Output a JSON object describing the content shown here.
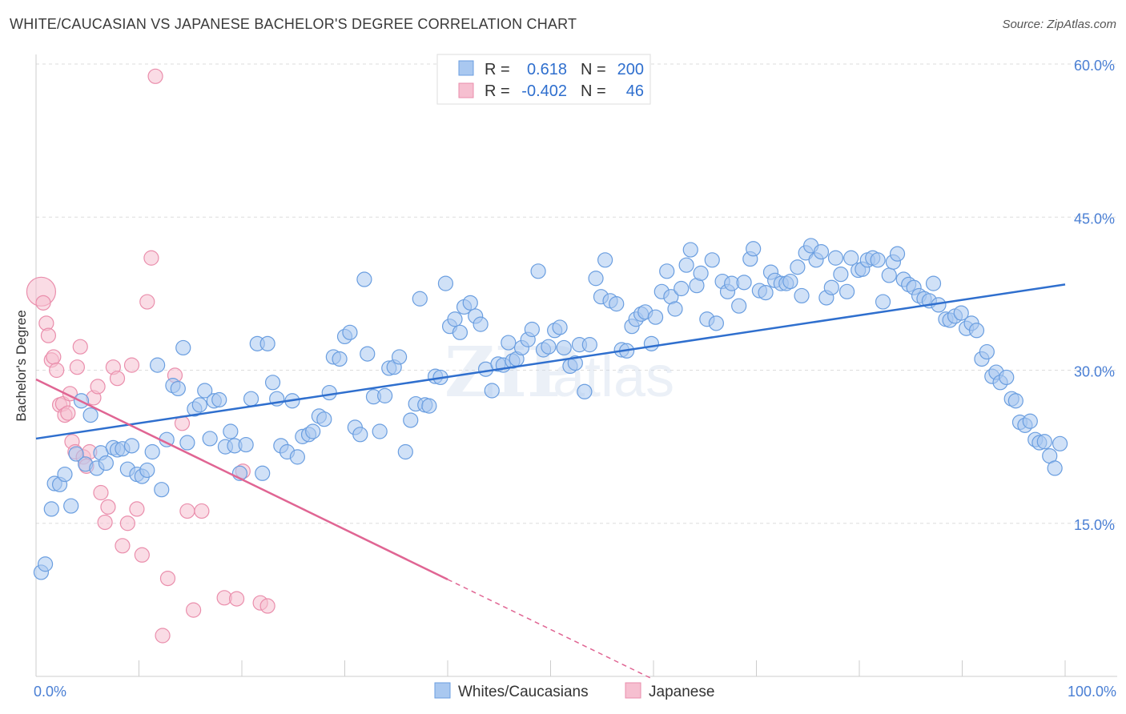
{
  "title": "WHITE/CAUCASIAN VS JAPANESE BACHELOR'S DEGREE CORRELATION CHART",
  "source": "Source: ZipAtlas.com",
  "watermark": {
    "zip": "ZIP",
    "atlas": "atlas"
  },
  "colors": {
    "blue_fill": "#a9c8f0",
    "blue_stroke": "#6a9ee0",
    "blue_line": "#2f6fce",
    "pink_fill": "#f6bfd0",
    "pink_stroke": "#ea8eac",
    "pink_line": "#e06593",
    "tick": "#4a7fd4",
    "grid": "#dddddd"
  },
  "legend": {
    "rows": [
      {
        "r_label": "R =",
        "r_value": "0.618",
        "n_label": "N =",
        "n_value": "200"
      },
      {
        "r_label": "R =",
        "r_value": "-0.402",
        "n_label": "N =",
        "n_value": "46"
      }
    ]
  },
  "bottom_legend": {
    "series1": "Whites/Caucasians",
    "series2": "Japanese"
  },
  "chart_data": {
    "type": "scatter",
    "ylabel": "Bachelor's Degree",
    "xlim": [
      0,
      100
    ],
    "ylim": [
      0,
      60
    ],
    "x_tick_labels": {
      "left": "0.0%",
      "right": "100.0%"
    },
    "y_ticks": [
      {
        "value": 15,
        "label": "15.0%"
      },
      {
        "value": 30,
        "label": "30.0%"
      },
      {
        "value": 45,
        "label": "45.0%"
      },
      {
        "value": 60,
        "label": "60.0%"
      }
    ],
    "series": [
      {
        "name": "Whites/Caucasians",
        "trend": {
          "x": [
            0,
            100
          ],
          "y": [
            23.3,
            38.4
          ],
          "dashed_from": null
        },
        "points": [
          [
            0.5,
            10.2
          ],
          [
            0.9,
            11.0
          ],
          [
            1.5,
            16.4
          ],
          [
            1.8,
            18.9
          ],
          [
            2.3,
            18.8
          ],
          [
            2.8,
            19.8
          ],
          [
            3.4,
            16.7
          ],
          [
            3.9,
            21.8
          ],
          [
            4.4,
            27.0
          ],
          [
            4.8,
            20.8
          ],
          [
            5.3,
            25.6
          ],
          [
            5.9,
            20.4
          ],
          [
            6.3,
            21.9
          ],
          [
            6.8,
            20.9
          ],
          [
            7.5,
            22.4
          ],
          [
            7.9,
            22.2
          ],
          [
            8.4,
            22.3
          ],
          [
            8.9,
            20.3
          ],
          [
            9.3,
            22.6
          ],
          [
            9.8,
            19.8
          ],
          [
            10.3,
            19.6
          ],
          [
            10.8,
            20.2
          ],
          [
            11.3,
            22.0
          ],
          [
            11.8,
            30.5
          ],
          [
            12.2,
            18.3
          ],
          [
            12.7,
            23.2
          ],
          [
            13.3,
            28.5
          ],
          [
            13.8,
            28.2
          ],
          [
            14.3,
            32.2
          ],
          [
            14.7,
            22.9
          ],
          [
            15.4,
            26.2
          ],
          [
            15.9,
            26.6
          ],
          [
            16.4,
            28.0
          ],
          [
            16.9,
            23.3
          ],
          [
            17.3,
            27.0
          ],
          [
            17.8,
            27.1
          ],
          [
            18.4,
            22.5
          ],
          [
            18.9,
            24.0
          ],
          [
            19.3,
            22.6
          ],
          [
            19.8,
            19.9
          ],
          [
            20.4,
            22.7
          ],
          [
            20.9,
            27.2
          ],
          [
            21.5,
            32.6
          ],
          [
            22.0,
            19.9
          ],
          [
            22.5,
            32.6
          ],
          [
            23.0,
            28.8
          ],
          [
            23.4,
            27.2
          ],
          [
            23.8,
            22.6
          ],
          [
            24.4,
            22.0
          ],
          [
            24.9,
            27.0
          ],
          [
            25.4,
            21.5
          ],
          [
            25.9,
            23.5
          ],
          [
            26.5,
            23.7
          ],
          [
            26.9,
            24.0
          ],
          [
            27.5,
            25.5
          ],
          [
            28.0,
            25.2
          ],
          [
            28.5,
            27.8
          ],
          [
            28.9,
            31.3
          ],
          [
            29.5,
            31.1
          ],
          [
            30.0,
            33.3
          ],
          [
            30.5,
            33.7
          ],
          [
            31.0,
            24.4
          ],
          [
            31.5,
            23.7
          ],
          [
            31.9,
            38.9
          ],
          [
            32.2,
            31.6
          ],
          [
            32.8,
            27.4
          ],
          [
            33.4,
            24.0
          ],
          [
            33.9,
            27.5
          ],
          [
            34.3,
            30.2
          ],
          [
            34.8,
            30.3
          ],
          [
            35.3,
            31.3
          ],
          [
            35.9,
            22.0
          ],
          [
            36.4,
            25.1
          ],
          [
            36.9,
            26.7
          ],
          [
            37.3,
            37.0
          ],
          [
            37.8,
            26.6
          ],
          [
            38.2,
            26.5
          ],
          [
            38.8,
            29.4
          ],
          [
            39.3,
            29.3
          ],
          [
            39.8,
            38.5
          ],
          [
            40.2,
            34.3
          ],
          [
            40.7,
            35.0
          ],
          [
            41.2,
            33.7
          ],
          [
            41.6,
            36.2
          ],
          [
            42.2,
            36.6
          ],
          [
            42.7,
            35.3
          ],
          [
            43.2,
            34.5
          ],
          [
            43.7,
            30.1
          ],
          [
            44.3,
            28.0
          ],
          [
            44.9,
            30.6
          ],
          [
            45.4,
            30.5
          ],
          [
            45.9,
            32.7
          ],
          [
            46.3,
            30.9
          ],
          [
            46.7,
            31.1
          ],
          [
            47.2,
            32.2
          ],
          [
            47.8,
            33.0
          ],
          [
            48.2,
            34.0
          ],
          [
            48.8,
            39.7
          ],
          [
            49.3,
            32.0
          ],
          [
            49.8,
            32.3
          ],
          [
            50.4,
            33.9
          ],
          [
            50.9,
            34.2
          ],
          [
            51.3,
            32.2
          ],
          [
            51.9,
            30.4
          ],
          [
            52.4,
            30.7
          ],
          [
            52.8,
            32.5
          ],
          [
            53.3,
            27.9
          ],
          [
            53.8,
            32.5
          ],
          [
            54.4,
            39.0
          ],
          [
            54.9,
            37.2
          ],
          [
            55.3,
            40.8
          ],
          [
            55.8,
            36.8
          ],
          [
            56.4,
            36.5
          ],
          [
            56.9,
            32.0
          ],
          [
            57.4,
            31.9
          ],
          [
            57.9,
            34.3
          ],
          [
            58.3,
            35.0
          ],
          [
            58.8,
            35.5
          ],
          [
            59.2,
            35.7
          ],
          [
            59.8,
            32.6
          ],
          [
            60.2,
            35.2
          ],
          [
            60.8,
            37.7
          ],
          [
            61.3,
            39.7
          ],
          [
            61.7,
            37.2
          ],
          [
            62.1,
            36.0
          ],
          [
            62.7,
            38.0
          ],
          [
            63.2,
            40.3
          ],
          [
            63.6,
            41.8
          ],
          [
            64.2,
            38.3
          ],
          [
            64.6,
            39.5
          ],
          [
            65.2,
            35.0
          ],
          [
            65.7,
            40.8
          ],
          [
            66.1,
            34.6
          ],
          [
            66.7,
            38.7
          ],
          [
            67.2,
            37.7
          ],
          [
            67.6,
            38.5
          ],
          [
            68.3,
            36.3
          ],
          [
            68.8,
            38.6
          ],
          [
            69.4,
            40.9
          ],
          [
            69.7,
            41.9
          ],
          [
            70.3,
            37.8
          ],
          [
            70.9,
            37.6
          ],
          [
            71.4,
            39.6
          ],
          [
            71.8,
            38.8
          ],
          [
            72.4,
            38.5
          ],
          [
            72.9,
            38.5
          ],
          [
            73.3,
            38.7
          ],
          [
            74.0,
            40.1
          ],
          [
            74.4,
            37.3
          ],
          [
            74.8,
            41.5
          ],
          [
            75.3,
            42.2
          ],
          [
            75.8,
            40.8
          ],
          [
            76.3,
            41.6
          ],
          [
            76.8,
            37.1
          ],
          [
            77.3,
            38.1
          ],
          [
            77.7,
            41.0
          ],
          [
            78.2,
            39.4
          ],
          [
            78.8,
            37.7
          ],
          [
            79.2,
            41.0
          ],
          [
            79.9,
            39.8
          ],
          [
            80.3,
            39.9
          ],
          [
            80.8,
            40.8
          ],
          [
            81.3,
            41.0
          ],
          [
            81.8,
            40.8
          ],
          [
            82.3,
            36.7
          ],
          [
            82.9,
            39.3
          ],
          [
            83.3,
            40.6
          ],
          [
            83.7,
            41.4
          ],
          [
            84.3,
            38.9
          ],
          [
            84.8,
            38.4
          ],
          [
            85.3,
            38.1
          ],
          [
            85.8,
            37.3
          ],
          [
            86.3,
            37.0
          ],
          [
            86.8,
            36.8
          ],
          [
            87.2,
            38.5
          ],
          [
            87.7,
            36.4
          ],
          [
            88.4,
            35.0
          ],
          [
            88.8,
            34.9
          ],
          [
            89.3,
            35.3
          ],
          [
            89.9,
            35.6
          ],
          [
            90.4,
            34.1
          ],
          [
            90.9,
            34.6
          ],
          [
            91.4,
            33.9
          ],
          [
            91.9,
            31.1
          ],
          [
            92.4,
            31.8
          ],
          [
            92.9,
            29.4
          ],
          [
            93.3,
            29.8
          ],
          [
            93.7,
            28.8
          ],
          [
            94.3,
            29.3
          ],
          [
            94.8,
            27.2
          ],
          [
            95.2,
            27.0
          ],
          [
            95.6,
            24.9
          ],
          [
            96.1,
            24.6
          ],
          [
            96.6,
            25.0
          ],
          [
            97.1,
            23.2
          ],
          [
            97.5,
            22.9
          ],
          [
            98.0,
            23.0
          ],
          [
            98.5,
            21.6
          ],
          [
            99.0,
            20.4
          ],
          [
            99.5,
            22.8
          ]
        ]
      },
      {
        "name": "Japanese",
        "trend": {
          "x": [
            0,
            40.0,
            60
          ],
          "y": [
            29.1,
            9.5,
            -0.3
          ],
          "dashed_from": 40.0
        },
        "points": [
          [
            0.5,
            37.7
          ],
          [
            0.7,
            36.6
          ],
          [
            1.0,
            34.6
          ],
          [
            1.2,
            33.4
          ],
          [
            1.5,
            31.0
          ],
          [
            1.7,
            31.3
          ],
          [
            2.0,
            30.0
          ],
          [
            2.3,
            26.6
          ],
          [
            2.6,
            26.7
          ],
          [
            2.8,
            25.6
          ],
          [
            3.1,
            25.8
          ],
          [
            3.3,
            27.7
          ],
          [
            3.5,
            23.0
          ],
          [
            3.8,
            22.0
          ],
          [
            4.0,
            30.3
          ],
          [
            4.3,
            32.3
          ],
          [
            4.6,
            21.5
          ],
          [
            4.9,
            20.6
          ],
          [
            5.2,
            22.0
          ],
          [
            5.6,
            27.3
          ],
          [
            6.0,
            28.4
          ],
          [
            6.3,
            18.0
          ],
          [
            6.7,
            15.1
          ],
          [
            7.0,
            16.6
          ],
          [
            7.5,
            30.3
          ],
          [
            7.9,
            29.2
          ],
          [
            8.4,
            12.8
          ],
          [
            8.9,
            15.0
          ],
          [
            9.3,
            30.5
          ],
          [
            9.8,
            16.4
          ],
          [
            10.3,
            11.9
          ],
          [
            10.8,
            36.7
          ],
          [
            11.2,
            41.0
          ],
          [
            11.6,
            58.8
          ],
          [
            12.3,
            4.0
          ],
          [
            12.8,
            9.6
          ],
          [
            13.5,
            29.5
          ],
          [
            14.2,
            24.8
          ],
          [
            14.7,
            16.2
          ],
          [
            15.3,
            6.5
          ],
          [
            16.1,
            16.2
          ],
          [
            18.3,
            7.7
          ],
          [
            19.5,
            7.6
          ],
          [
            20.1,
            20.1
          ],
          [
            21.8,
            7.2
          ],
          [
            22.5,
            6.9
          ]
        ]
      }
    ]
  }
}
